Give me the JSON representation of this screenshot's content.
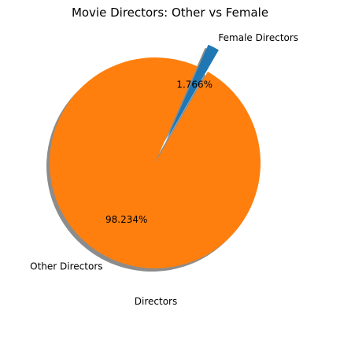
{
  "chart_data": {
    "type": "pie",
    "title": "Movie Directors: Other vs Female",
    "xlabel": "Directors",
    "slices": [
      {
        "label": "Female Directors",
        "value": 1.766,
        "pct_label": "1.766%",
        "color": "#1f77b4",
        "exploded": true
      },
      {
        "label": "Other Directors",
        "value": 98.234,
        "pct_label": "98.234%",
        "color": "#ff7f0e",
        "exploded": false
      }
    ],
    "shadow": true,
    "legend": "none"
  }
}
